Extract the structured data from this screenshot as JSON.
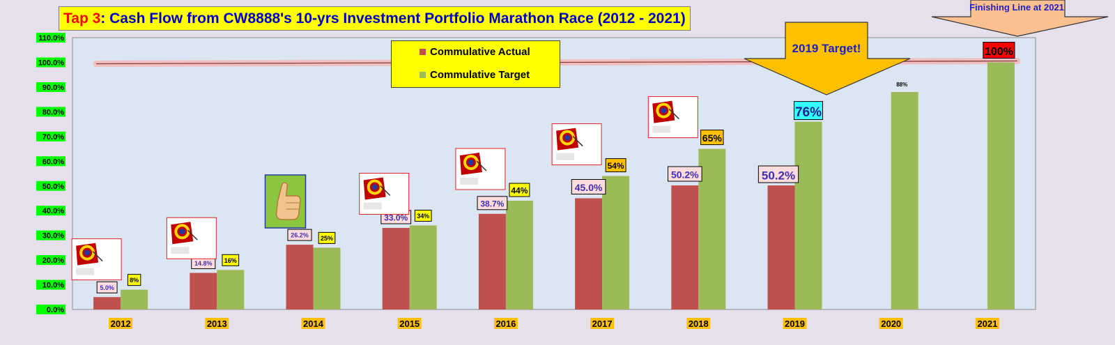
{
  "title": {
    "prefix": "Tap 3",
    "rest": ": Cash Flow from CW8888's 10-yrs Investment  Portfolio Marathon Race (2012 - 2021)"
  },
  "legend": {
    "actual_label": "Commulative Actual",
    "target_label": "Commulative Target"
  },
  "annotations": {
    "target_arrow_text": "2019 Target!",
    "finish_line_text": "Finishing Line at 2021"
  },
  "colors": {
    "actual": "#c0504d",
    "target": "#9bbb59",
    "plot_bg": "#dce6f2",
    "page_bg": "#e6e0ec",
    "tick_bg": "#00ff00",
    "year_bg": "#ffc000",
    "arrow": "#ffc000",
    "finish_arrow": "#fac090",
    "highlight_cyan": "#33ffff",
    "highlight_red": "#ff0000"
  },
  "chart_data": {
    "type": "bar",
    "categories": [
      "2012",
      "2013",
      "2014",
      "2015",
      "2016",
      "2017",
      "2018",
      "2019",
      "2020",
      "2021"
    ],
    "series": [
      {
        "name": "Commulative Actual",
        "values": [
          5.0,
          14.8,
          26.2,
          33.0,
          38.7,
          45.0,
          50.2,
          50.2,
          null,
          null
        ],
        "labels": [
          "5.0%",
          "14.8%",
          "26.2%",
          "33.0%",
          "38.7%",
          "45.0%",
          "50.2%",
          "50.2%",
          "",
          ""
        ]
      },
      {
        "name": "Commulative Target",
        "values": [
          8,
          16,
          25,
          34,
          44,
          54,
          65,
          76,
          88,
          100
        ],
        "labels": [
          "8%",
          "16%",
          "25%",
          "34%",
          "44%",
          "54%",
          "65%",
          "76%",
          "88%",
          "100%"
        ]
      }
    ],
    "y_ticks": [
      "0.0%",
      "10.0%",
      "20.0%",
      "30.0%",
      "40.0%",
      "50.0%",
      "60.0%",
      "70.0%",
      "80.0%",
      "90.0%",
      "100.0%",
      "110.0%"
    ],
    "ylim": [
      0,
      110
    ],
    "reference_line": 100,
    "grid": false,
    "legend_position": "top-center",
    "icons": [
      "target-icon",
      "target-icon",
      "thumbs-up-icon",
      "target-icon",
      "target-icon",
      "target-icon",
      "target-icon",
      "",
      "",
      ""
    ],
    "xlabel": "",
    "ylabel": ""
  }
}
